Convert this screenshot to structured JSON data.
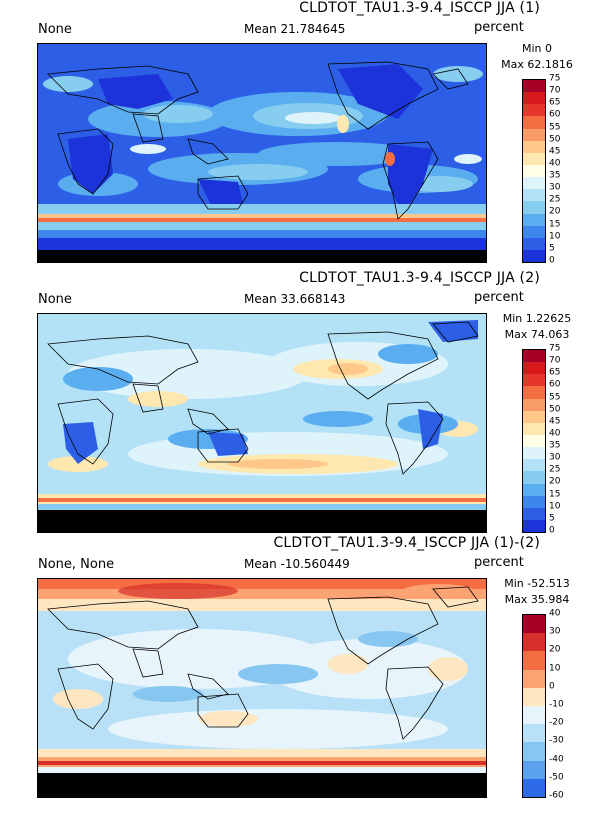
{
  "panels": [
    {
      "title": "CLDTOT_TAU1.3-9.4_ISCCP JJA (1)",
      "left_label": "None",
      "mean": "Mean 21.784645",
      "units": "percent",
      "min": "Min 0",
      "max": "Max 62.1816",
      "colorbar_ticks": [
        "75",
        "70",
        "65",
        "60",
        "55",
        "50",
        "45",
        "40",
        "35",
        "30",
        "25",
        "20",
        "15",
        "10",
        "5",
        "0"
      ],
      "colorbar_colors": [
        "#a50026",
        "#d7191c",
        "#e8352b",
        "#f46d43",
        "#f89b64",
        "#fdc88a",
        "#fee8b0",
        "#ffffe5",
        "#dff3fb",
        "#b3e2f6",
        "#86cdf0",
        "#5aaef0",
        "#3d86ec",
        "#2c5fe6",
        "#1b33d8"
      ]
    },
    {
      "title": "CLDTOT_TAU1.3-9.4_ISCCP JJA (2)",
      "left_label": "None",
      "mean": "Mean 33.668143",
      "units": "percent",
      "min": "Min 1.22625",
      "max": "Max 74.063",
      "colorbar_ticks": [
        "75",
        "70",
        "65",
        "60",
        "55",
        "50",
        "45",
        "40",
        "35",
        "30",
        "25",
        "20",
        "15",
        "10",
        "5",
        "0"
      ],
      "colorbar_colors": [
        "#a50026",
        "#d7191c",
        "#e8352b",
        "#f46d43",
        "#f89b64",
        "#fdc88a",
        "#fee8b0",
        "#ffffe5",
        "#dff3fb",
        "#b3e2f6",
        "#86cdf0",
        "#5aaef0",
        "#3d86ec",
        "#2c5fe6",
        "#1b33d8"
      ]
    },
    {
      "title": "CLDTOT_TAU1.3-9.4_ISCCP JJA (1)-(2)",
      "left_label": "None, None",
      "mean": "Mean -10.560449",
      "units": "percent",
      "min": "Min -52.513",
      "max": "Max 35.984",
      "colorbar_ticks": [
        "40",
        "30",
        "20",
        "10",
        "0",
        "-10",
        "-20",
        "-30",
        "-40",
        "-50",
        "-60"
      ],
      "colorbar_colors": [
        "#a50026",
        "#d7302b",
        "#f46d43",
        "#fba373",
        "#fde6c0",
        "#e8f4fb",
        "#b8e0f6",
        "#86c6f0",
        "#5aa2ee",
        "#2e6be6"
      ]
    }
  ]
}
